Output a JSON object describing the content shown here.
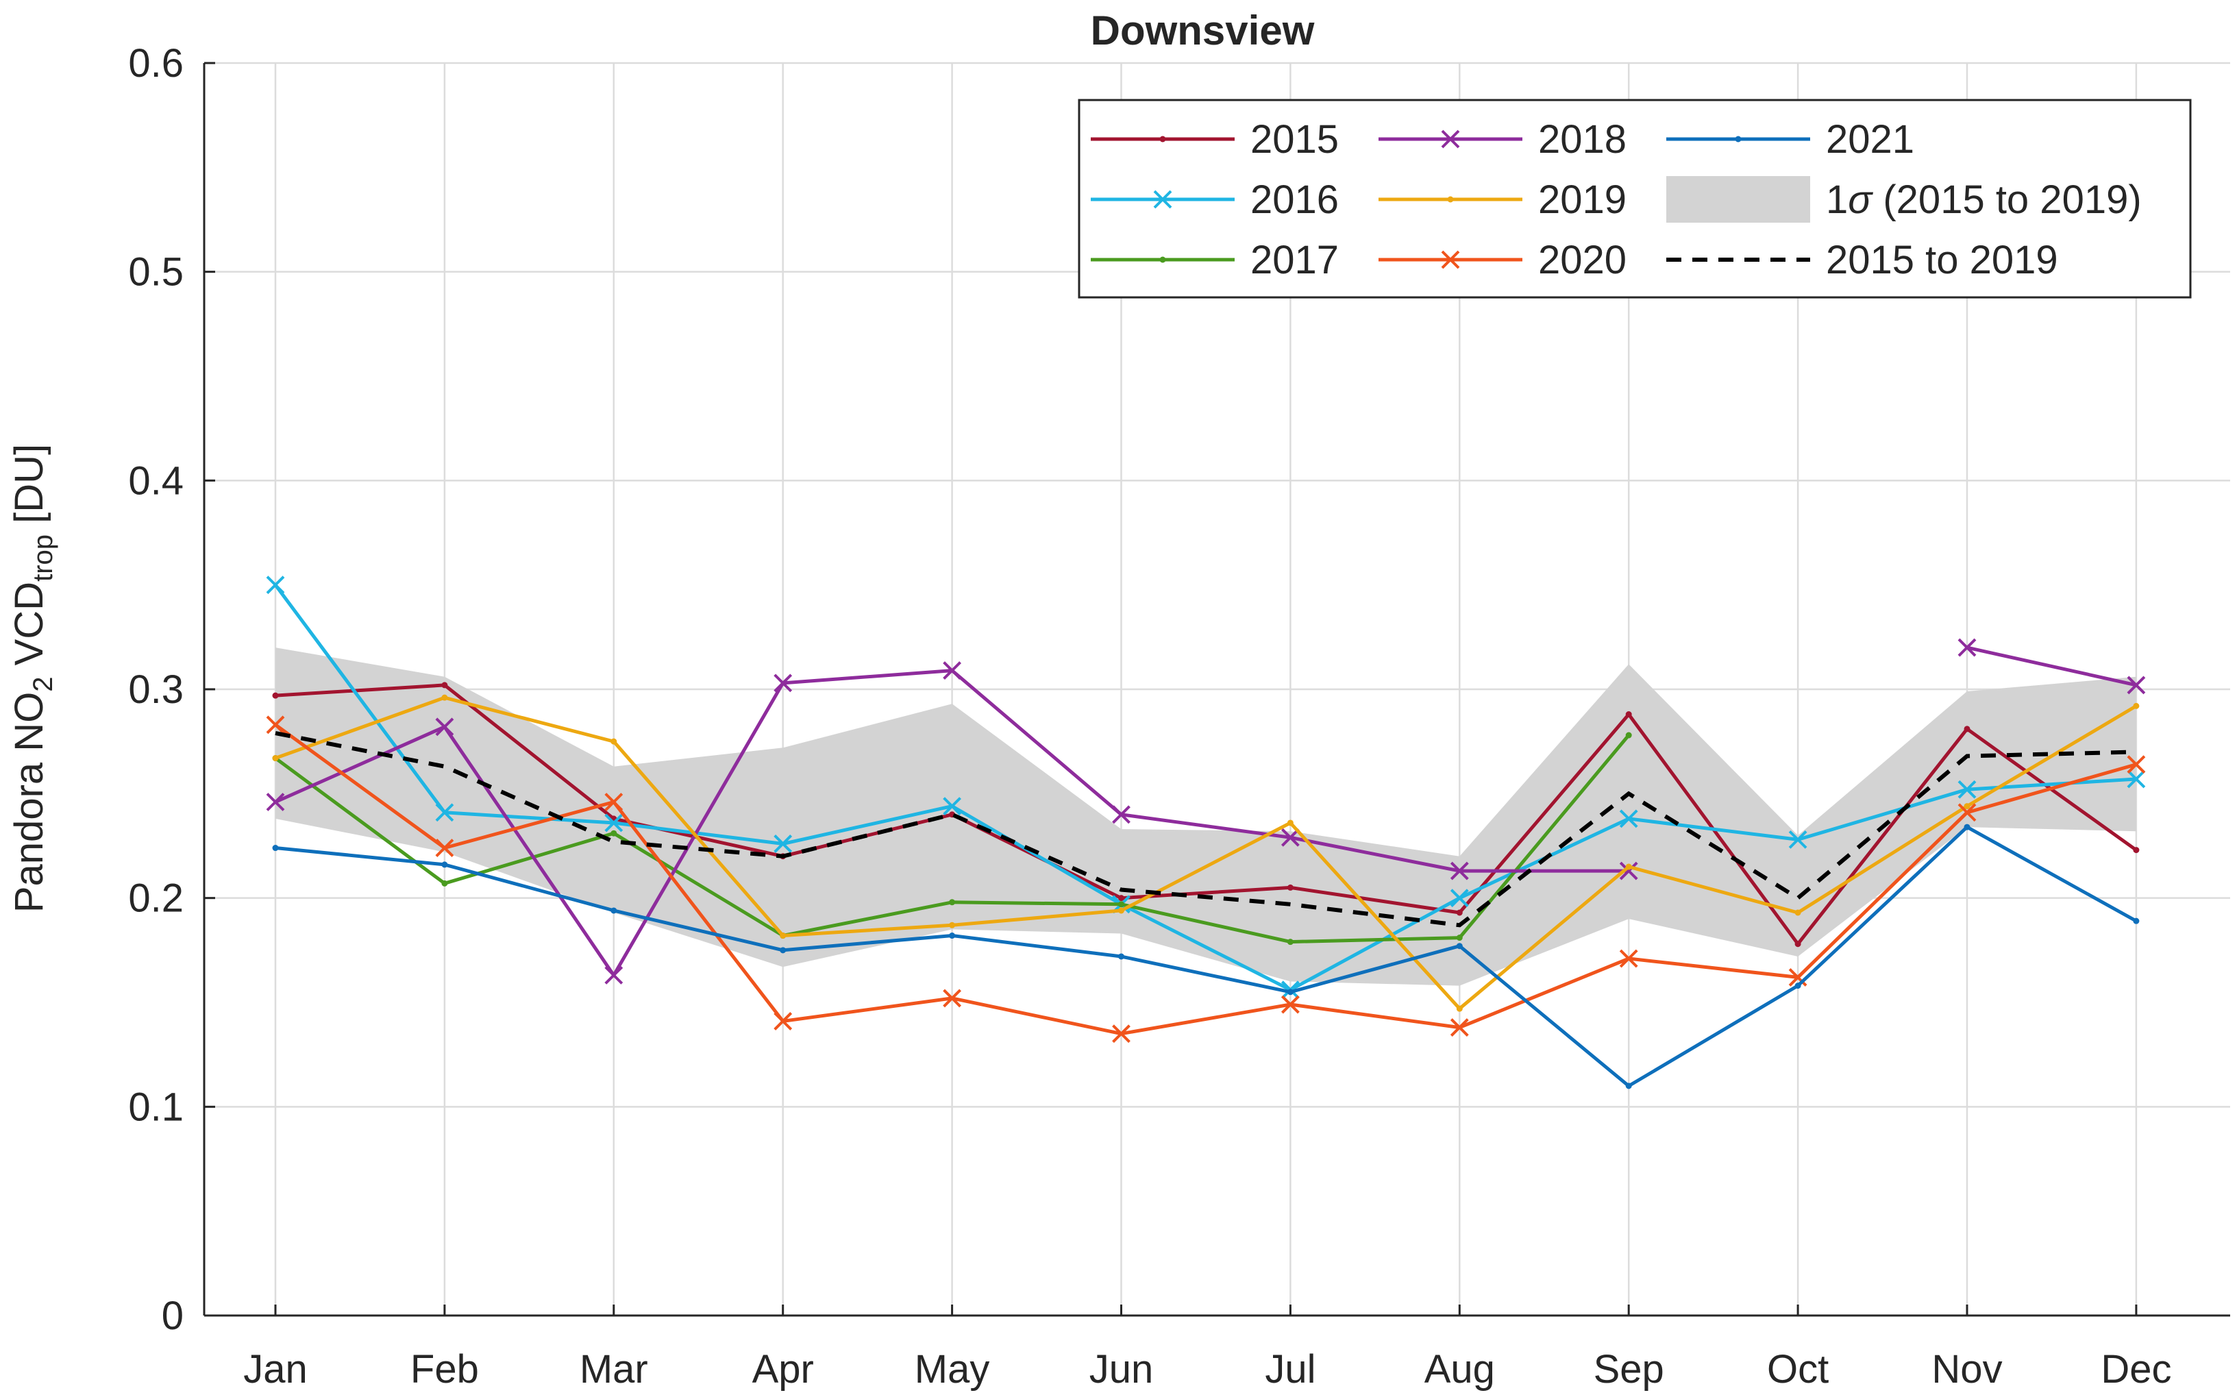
{
  "chart_data": {
    "type": "line",
    "title": "Downsview",
    "ylabel": {
      "main": "Pandora NO",
      "sub2": "2",
      "mid": " VCD",
      "subtrop": "trop",
      "unit": " [DU]"
    },
    "xlabel": "",
    "categories": [
      "Jan",
      "Feb",
      "Mar",
      "Apr",
      "May",
      "Jun",
      "Jul",
      "Aug",
      "Sep",
      "Oct",
      "Nov",
      "Dec"
    ],
    "ylim": [
      0,
      0.6
    ],
    "yticks": [
      0,
      0.1,
      0.2,
      0.3,
      0.4,
      0.5,
      0.6
    ],
    "ytick_labels": [
      "0",
      "0.1",
      "0.2",
      "0.3",
      "0.4",
      "0.5",
      "0.6"
    ],
    "grid": true,
    "legend_position": "top-right",
    "band": {
      "name": "1σ (2015 to 2019)",
      "label_prefix": "1",
      "label_sigma": "σ",
      "label_suffix": " (2015 to 2019)",
      "color": "#d3d3d3",
      "upper": [
        0.32,
        0.306,
        0.263,
        0.272,
        0.293,
        0.233,
        0.232,
        0.22,
        0.312,
        0.23,
        0.299,
        0.306
      ],
      "lower": [
        0.238,
        0.222,
        0.193,
        0.167,
        0.185,
        0.183,
        0.16,
        0.158,
        0.19,
        0.172,
        0.234,
        0.232
      ]
    },
    "mean": {
      "name": "2015 to 2019",
      "color": "#000000",
      "values": [
        0.279,
        0.263,
        0.227,
        0.22,
        0.24,
        0.204,
        0.197,
        0.187,
        0.25,
        0.2,
        0.268,
        0.27
      ]
    },
    "series": [
      {
        "name": "2015",
        "color": "#a2142f",
        "marker": "dot",
        "values": [
          0.297,
          0.302,
          0.238,
          0.22,
          0.24,
          0.2,
          0.205,
          0.193,
          0.288,
          0.178,
          0.281,
          0.223
        ]
      },
      {
        "name": "2016",
        "color": "#1fb5e3",
        "marker": "x",
        "values": [
          0.35,
          0.241,
          0.236,
          0.226,
          0.244,
          0.197,
          0.156,
          0.2,
          0.238,
          0.228,
          0.252,
          0.257
        ]
      },
      {
        "name": "2017",
        "color": "#4a9b1f",
        "marker": "dot",
        "values": [
          0.267,
          0.207,
          0.231,
          0.182,
          0.198,
          0.197,
          0.179,
          0.181,
          0.278,
          null,
          null,
          null
        ]
      },
      {
        "name": "2018",
        "color": "#8e2c9c",
        "marker": "x",
        "values": [
          0.246,
          0.282,
          0.163,
          0.303,
          0.309,
          0.24,
          0.229,
          0.213,
          0.213,
          null,
          0.32,
          0.302
        ]
      },
      {
        "name": "2019",
        "color": "#eda811",
        "marker": "dot",
        "values": [
          0.267,
          0.296,
          0.275,
          0.182,
          0.187,
          0.194,
          0.236,
          0.147,
          0.215,
          0.193,
          0.244,
          0.292
        ]
      },
      {
        "name": "2020",
        "color": "#f0541c",
        "marker": "x",
        "values": [
          0.283,
          0.224,
          0.246,
          0.141,
          0.152,
          0.135,
          0.149,
          0.138,
          0.171,
          0.162,
          0.241,
          0.264
        ]
      },
      {
        "name": "2021",
        "color": "#0e6fbb",
        "marker": "dot",
        "values": [
          0.224,
          0.216,
          0.194,
          0.175,
          0.182,
          0.172,
          0.155,
          0.177,
          0.11,
          0.158,
          0.234,
          0.189
        ]
      }
    ]
  }
}
